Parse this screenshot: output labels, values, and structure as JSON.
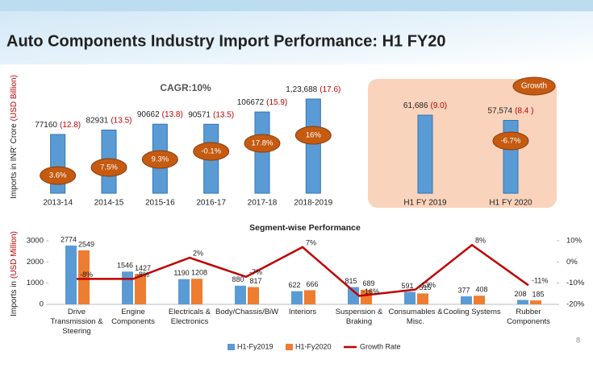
{
  "title": "Auto Components Industry Import Performance: H1 FY20",
  "page_number": "8",
  "chart_data": [
    {
      "type": "bar",
      "y_label": "Imports in INR' Crore",
      "y_label_unit": "(USD Billion)",
      "annotation": "CAGR:10%",
      "categories": [
        "2013-14",
        "2014-15",
        "2015-16",
        "2016-17",
        "2017-18",
        "2018-2019"
      ],
      "values": [
        77160,
        82931,
        90662,
        90571,
        106672,
        123688
      ],
      "value_labels": [
        "77160",
        "82931",
        "90662",
        "90571",
        "106672",
        "1,23,688"
      ],
      "usd_values": [
        12.8,
        13.5,
        13.8,
        13.5,
        15.9,
        17.6
      ],
      "usd_labels": [
        "(12.8)",
        "(13.5)",
        "(13.8)",
        "(13.5)",
        "(15.9)",
        "(17.6)"
      ],
      "growth_values": [
        3.6,
        7.5,
        9.3,
        -0.1,
        17.8,
        16
      ],
      "growth_labels": [
        "3.6%",
        "7.5%",
        "9.3%",
        "-0.1%",
        "17.8%",
        "16%"
      ],
      "color": "#5b9bd5",
      "ylim": [
        0,
        130000
      ]
    },
    {
      "type": "bar",
      "legend_label": "Growth",
      "categories": [
        "H1 FY 2019",
        "H1 FY 2020"
      ],
      "values": [
        61686,
        57574
      ],
      "value_labels": [
        "61,686",
        "57,574"
      ],
      "usd_values": [
        9.0,
        8.4
      ],
      "usd_labels": [
        "(9.0)",
        "(8.4 )"
      ],
      "growth_values": [
        -6.7
      ],
      "growth_labels": [
        "-6.7%"
      ],
      "color": "#5b9bd5",
      "ylim": [
        0,
        70000
      ]
    },
    {
      "type": "combo",
      "title": "Segment-wise Performance",
      "y_label": "Imports in",
      "y_label_unit": "(USD Million)",
      "categories": [
        "Drive Transmission & Steering",
        "Engine Components",
        "Electricals & Electronics",
        "Body/Chassis/BiW",
        "Interiors",
        "Suspension & Braking",
        "Consumables & Misc.",
        "Cooling Systems",
        "Rubber Components"
      ],
      "series": [
        {
          "name": "H1-Fy2019",
          "color": "#5b9bd5",
          "values": [
            2774,
            1546,
            1190,
            880,
            622,
            815,
            591,
            377,
            208
          ]
        },
        {
          "name": "H1-Fy2020",
          "color": "#ed7d31",
          "values": [
            2549,
            1427,
            1208,
            817,
            666,
            689,
            515,
            408,
            185
          ]
        },
        {
          "name": "Growth Rate",
          "color": "#c00000",
          "type": "line",
          "axis": "y2",
          "values": [
            -8,
            -8,
            2,
            -7,
            7,
            -16,
            -13,
            8,
            -11
          ],
          "value_labels": [
            "-8%",
            "-8%",
            "2%",
            "-7%",
            "7%",
            "-16%",
            "-13%",
            "8%",
            "-11%"
          ]
        }
      ],
      "ylim": [
        0,
        3000
      ],
      "yticks": [
        0,
        1000,
        2000,
        3000
      ],
      "y2lim": [
        -20,
        10
      ],
      "y2ticks": [
        {
          "value": 10,
          "label": "10%"
        },
        {
          "value": 0,
          "label": "0%"
        },
        {
          "value": -10,
          "label": "-10%"
        },
        {
          "value": -20,
          "label": "-20%"
        }
      ],
      "legend": "bottom"
    }
  ]
}
